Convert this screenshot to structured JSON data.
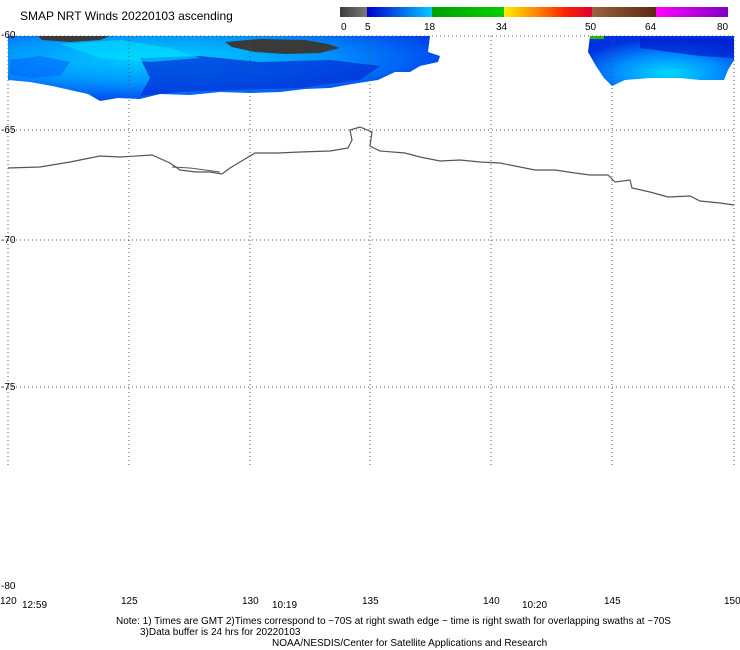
{
  "title": "SMAP NRT Winds 20220103 ascending",
  "colorbar": {
    "labels": [
      "0",
      "5",
      "18",
      "34",
      "50",
      "64",
      "80"
    ],
    "segments": [
      {
        "from": 0,
        "to": 5,
        "colors": [
          "#3c3c3c",
          "#7a7a7a"
        ]
      },
      {
        "from": 5,
        "to": 18,
        "colors": [
          "#0000cc",
          "#00c8ff"
        ]
      },
      {
        "from": 18,
        "to": 34,
        "colors": [
          "#00a000",
          "#00d000"
        ]
      },
      {
        "from": 34,
        "to": 50,
        "colors": [
          "#ffee00",
          "#ff8c00",
          "#ff2000",
          "#dd0030"
        ]
      },
      {
        "from": 50,
        "to": 64,
        "colors": [
          "#9a6040",
          "#5a2a10"
        ]
      },
      {
        "from": 64,
        "to": 80,
        "colors": [
          "#ff00ff",
          "#8000c0"
        ]
      }
    ]
  },
  "map": {
    "lon_range": [
      120,
      150
    ],
    "lat_range": [
      -80,
      -60
    ],
    "lon_ticks": [
      "120",
      "125",
      "130",
      "135",
      "140",
      "145",
      "150"
    ],
    "lat_ticks": [
      "-60",
      "-65",
      "-70",
      "-75",
      "-80"
    ],
    "time_labels": [
      {
        "text": "12:59",
        "lon": 121.2
      },
      {
        "text": "10:19",
        "lon": 131.5
      },
      {
        "text": "10:20",
        "lon": 141.8
      }
    ]
  },
  "notes": {
    "line1": "Note: 1) Times are GMT 2)Times correspond to ~70S at right swath edge ~ time is right swath for overlapping swaths at ~70S",
    "line2": "3)Data buffer is 24 hrs for 20220103",
    "line3": "NOAA/NESDIS/Center for Satellite Applications and Research"
  }
}
